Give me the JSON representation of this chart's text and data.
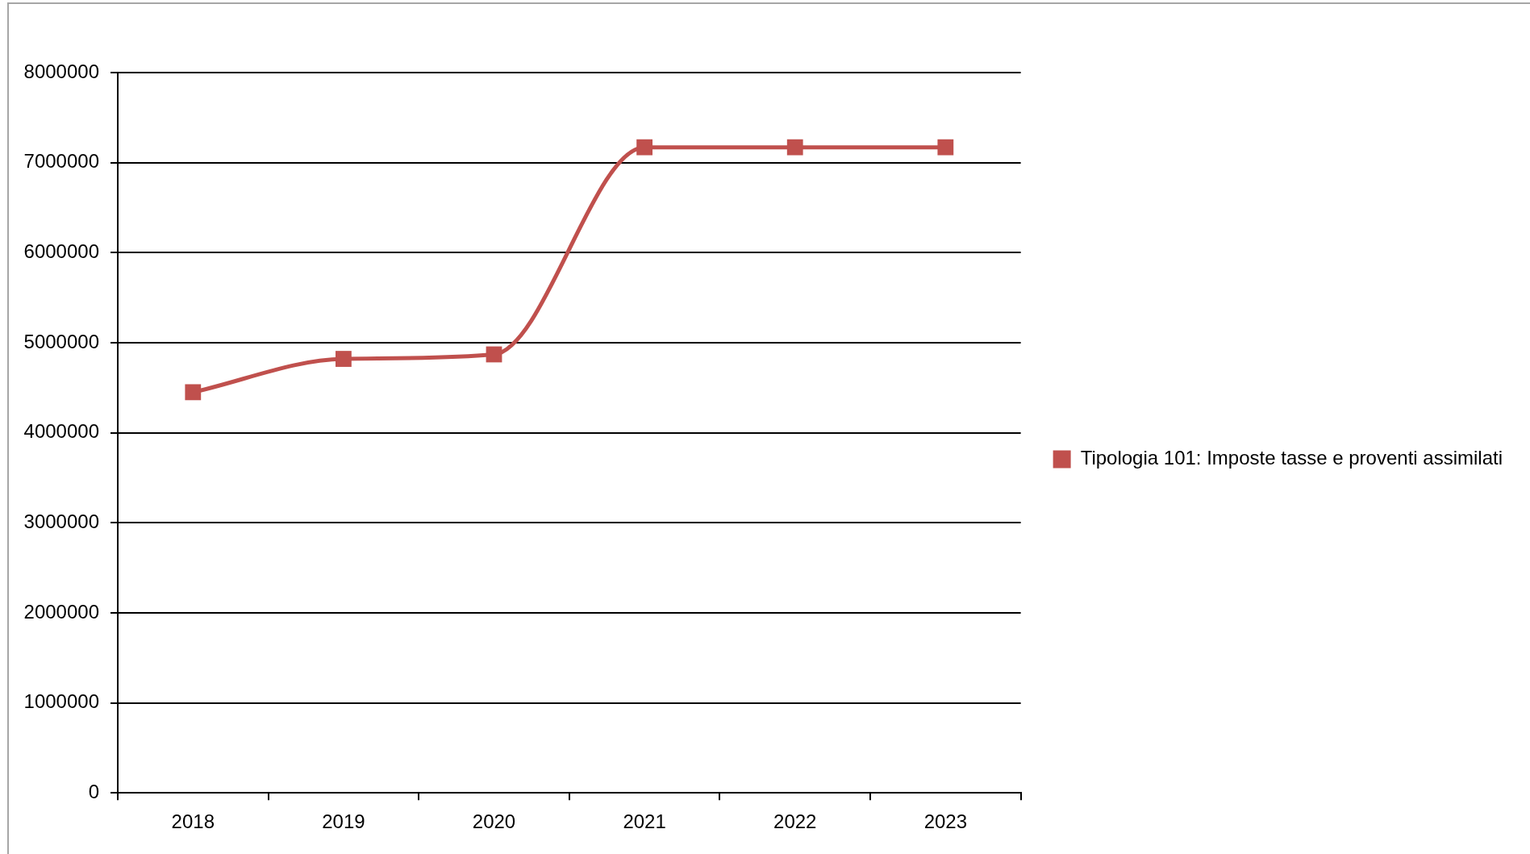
{
  "chart_data": {
    "type": "line",
    "categories": [
      "2018",
      "2019",
      "2020",
      "2021",
      "2022",
      "2023"
    ],
    "series": [
      {
        "name": "Tipologia 101: Imposte tasse e proventi assimilati",
        "color": "#c0504d",
        "values": [
          4450000,
          4820000,
          4870000,
          7170000,
          7170000,
          7170000
        ]
      }
    ],
    "ylim": [
      0,
      8000000
    ],
    "yticks": [
      0,
      1000000,
      2000000,
      3000000,
      4000000,
      5000000,
      6000000,
      7000000,
      8000000
    ],
    "grid": "y",
    "legend": "right",
    "marker": "square",
    "line_style": "solid"
  }
}
